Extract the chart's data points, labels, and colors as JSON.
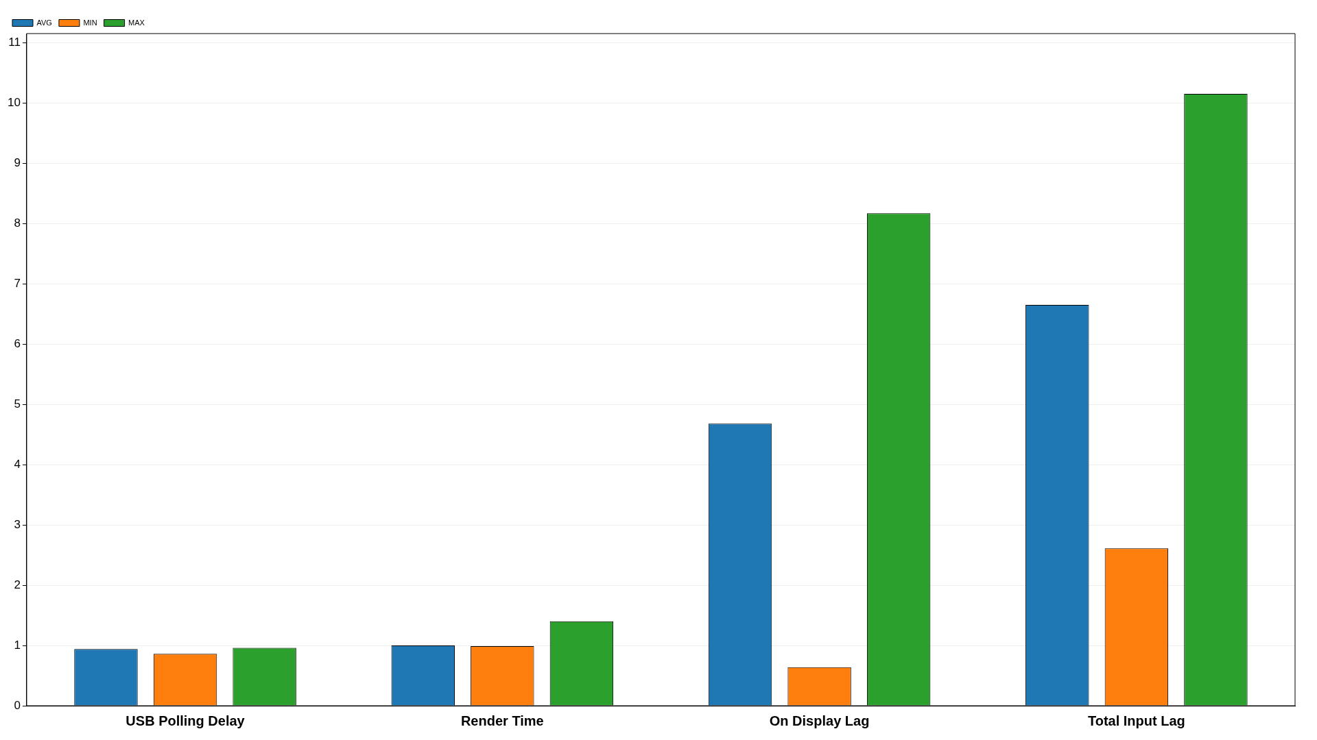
{
  "chart_data": {
    "type": "bar",
    "categories": [
      "USB Polling Delay",
      "Render Time",
      "On Display Lag",
      "Total Input Lag"
    ],
    "series": [
      {
        "name": "AVG",
        "color": "#1f77b4",
        "values": [
          0.94,
          1.0,
          4.68,
          6.65
        ]
      },
      {
        "name": "MIN",
        "color": "#ff7f0e",
        "values": [
          0.86,
          0.99,
          0.64,
          2.61
        ]
      },
      {
        "name": "MAX",
        "color": "#2ca02c",
        "values": [
          0.96,
          1.4,
          8.17,
          10.15
        ]
      }
    ],
    "ylim": [
      0,
      11.15
    ],
    "yticks": [
      0,
      1,
      2,
      3,
      4,
      5,
      6,
      7,
      8,
      9,
      10,
      11
    ],
    "grid": "y",
    "legend": "top left"
  }
}
